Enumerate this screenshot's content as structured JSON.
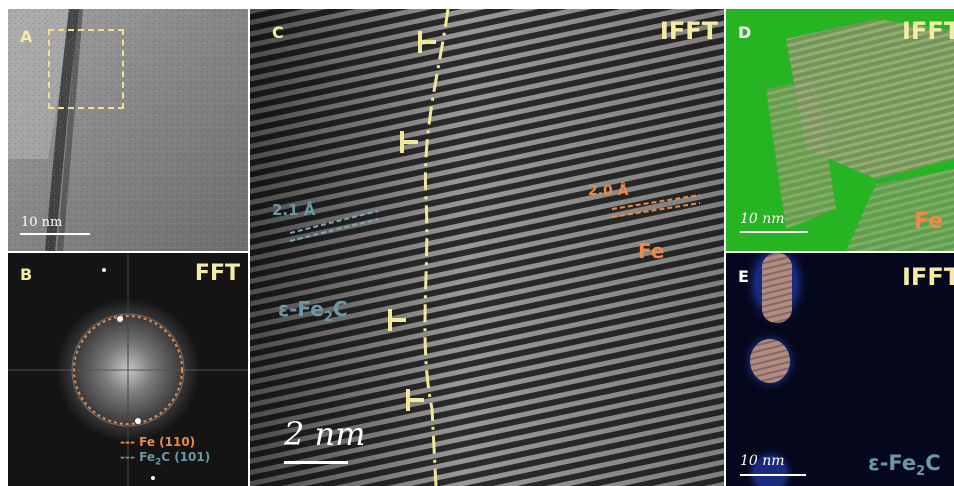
{
  "colors": {
    "label_yellow": "#f4eca2",
    "fe_orange": "#ec8a4a",
    "carbide_blue": "#6a98a6",
    "overlay_green": "#25b223",
    "overlay_blue": "#1a2f8a"
  },
  "panels": {
    "a": {
      "letter": "A",
      "scale": "10 nm"
    },
    "b": {
      "letter": "B",
      "tag": "FFT",
      "legend": [
        {
          "text": "--- Fe (110)",
          "color": "#ec8a4a"
        },
        {
          "prefix": "--- Fe",
          "sub": "2",
          "suffix": "C (101)",
          "color": "#6a98a6"
        }
      ]
    },
    "c": {
      "letter": "C",
      "tag": "IFFT",
      "spacing_left": "2.1 Å",
      "spacing_right": "2.0 Å",
      "phase_right": "Fe",
      "phase_left_prefix": "ε-Fe",
      "phase_left_sub": "2",
      "phase_left_suffix": "C",
      "scale": "2 nm"
    },
    "d": {
      "letter": "D",
      "tag": "IFFT",
      "phase": "Fe",
      "scale": "10 nm"
    },
    "e": {
      "letter": "E",
      "tag": "IFFT",
      "phase_prefix": "ε-Fe",
      "phase_sub": "2",
      "phase_suffix": "C",
      "scale": "10 nm"
    }
  }
}
